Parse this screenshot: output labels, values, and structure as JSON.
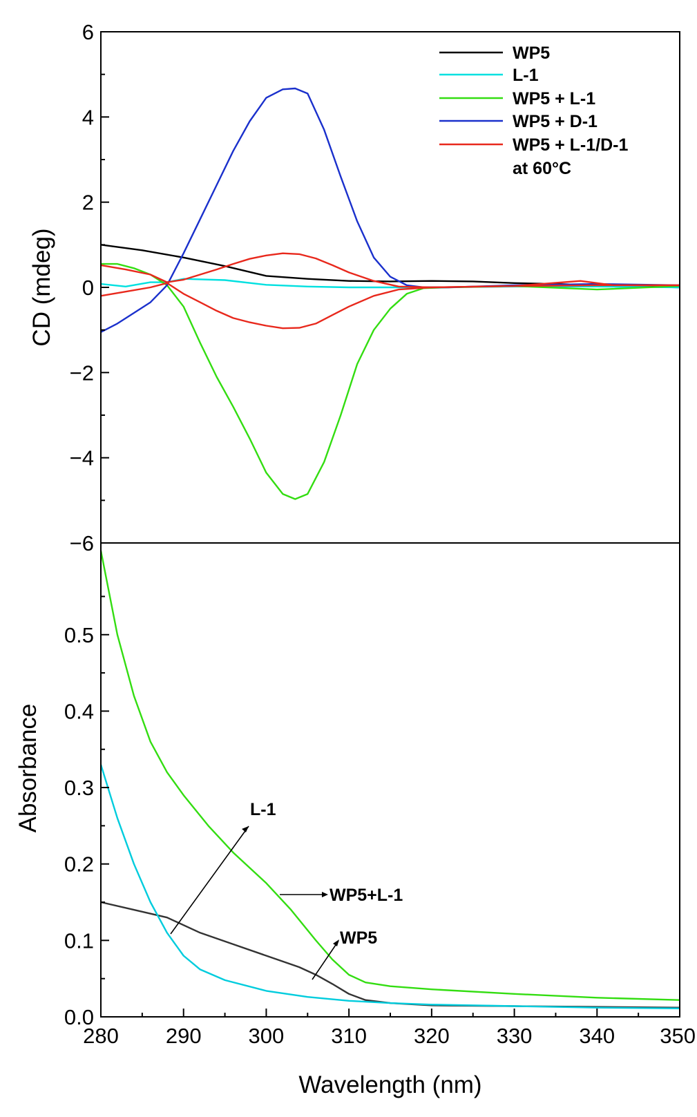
{
  "chart_data": [
    {
      "type": "line",
      "ylabel": "CD (mdeg)",
      "xlim": [
        280,
        350
      ],
      "ylim": [
        -6,
        6
      ],
      "yticks": [
        -6,
        -4,
        -2,
        0,
        2,
        4,
        6
      ],
      "ytick_labels": [
        "−6",
        "−4",
        "−2",
        "0",
        "2",
        "4",
        "6"
      ],
      "legend": {
        "position": "top-right",
        "entries": [
          {
            "label": "WP5",
            "color": "#000000"
          },
          {
            "label": "L-1",
            "color": "#00e0e0"
          },
          {
            "label": "WP5 + L-1",
            "color": "#33dd11"
          },
          {
            "label": "WP5 + D-1",
            "color": "#1a30cc"
          },
          {
            "label": "WP5 + L-1/D-1",
            "label_line2": "at 60°C",
            "color": "#e8281c"
          }
        ]
      },
      "series": [
        {
          "name": "WP5",
          "color": "#000000",
          "x": [
            280,
            285,
            290,
            295,
            300,
            305,
            310,
            315,
            320,
            325,
            330,
            335,
            340,
            345,
            350
          ],
          "y": [
            1.0,
            0.87,
            0.7,
            0.5,
            0.27,
            0.2,
            0.15,
            0.14,
            0.15,
            0.14,
            0.1,
            0.08,
            0.05,
            0.02,
            0.0
          ]
        },
        {
          "name": "L-1",
          "color": "#00e0e0",
          "x": [
            280,
            283,
            286,
            288,
            290,
            295,
            300,
            305,
            310,
            315,
            320,
            330,
            340,
            350
          ],
          "y": [
            0.08,
            0.02,
            0.12,
            0.12,
            0.2,
            0.17,
            0.06,
            0.02,
            0.0,
            0.0,
            0.0,
            0.02,
            0.02,
            0.0
          ]
        },
        {
          "name": "WP5 + L-1",
          "color": "#33dd11",
          "x": [
            280,
            282,
            284,
            286,
            288,
            290,
            292,
            294,
            296,
            298,
            300,
            302,
            303.5,
            305,
            307,
            309,
            311,
            313,
            315,
            317,
            319,
            322,
            330,
            340,
            350
          ],
          "y": [
            0.55,
            0.55,
            0.45,
            0.3,
            0.05,
            -0.45,
            -1.3,
            -2.1,
            -2.8,
            -3.55,
            -4.35,
            -4.85,
            -4.97,
            -4.85,
            -4.1,
            -3.0,
            -1.8,
            -1.0,
            -0.5,
            -0.15,
            -0.02,
            0.0,
            0.03,
            -0.05,
            0.03
          ]
        },
        {
          "name": "WP5 + D-1",
          "color": "#1a30cc",
          "x": [
            280,
            282,
            284,
            286,
            288,
            290,
            292,
            294,
            296,
            298,
            300,
            302,
            303.5,
            305,
            307,
            309,
            311,
            313,
            315,
            317,
            319,
            322,
            330,
            340,
            350
          ],
          "y": [
            -1.05,
            -0.85,
            -0.6,
            -0.35,
            0.05,
            0.8,
            1.6,
            2.4,
            3.2,
            3.9,
            4.45,
            4.65,
            4.67,
            4.55,
            3.7,
            2.6,
            1.55,
            0.7,
            0.25,
            0.05,
            0.0,
            0.0,
            0.05,
            0.08,
            0.05
          ]
        },
        {
          "name": "WP5 + L-1/D-1 at 60°C (positive)",
          "color": "#e8281c",
          "x": [
            280,
            283,
            286,
            288,
            290,
            292,
            294,
            296,
            298,
            300,
            302,
            304,
            306,
            308,
            310,
            313,
            316,
            320,
            330,
            338,
            342,
            350
          ],
          "y": [
            0.52,
            0.42,
            0.3,
            0.12,
            0.18,
            0.3,
            0.42,
            0.55,
            0.67,
            0.75,
            0.8,
            0.78,
            0.68,
            0.52,
            0.35,
            0.15,
            0.02,
            0.0,
            0.03,
            0.15,
            0.05,
            0.05
          ]
        },
        {
          "name": "WP5 + L-1/D-1 at 60°C (negative)",
          "color": "#e8281c",
          "x": [
            280,
            283,
            286,
            288,
            290,
            292,
            294,
            296,
            298,
            300,
            302,
            304,
            306,
            308,
            310,
            313,
            316,
            320,
            330,
            340,
            350
          ],
          "y": [
            -0.2,
            -0.1,
            0.0,
            0.1,
            -0.15,
            -0.35,
            -0.55,
            -0.72,
            -0.82,
            -0.9,
            -0.96,
            -0.95,
            -0.85,
            -0.65,
            -0.45,
            -0.2,
            -0.05,
            0.0,
            0.03,
            0.05,
            0.05
          ]
        }
      ]
    },
    {
      "type": "line",
      "xlabel": "Wavelength (nm)",
      "ylabel": "Absorbance",
      "xlim": [
        280,
        350
      ],
      "ylim": [
        0,
        0.62
      ],
      "xticks": [
        280,
        290,
        300,
        310,
        320,
        330,
        340,
        350
      ],
      "xtick_labels": [
        "280",
        "290",
        "300",
        "310",
        "320",
        "330",
        "340",
        "350"
      ],
      "yticks": [
        0.0,
        0.1,
        0.2,
        0.3,
        0.4,
        0.5
      ],
      "ytick_labels": [
        "0.0",
        "0.1",
        "0.2",
        "0.3",
        "0.4",
        "0.5"
      ],
      "annotations": [
        {
          "text": "L-1",
          "points_to_series": "L-1"
        },
        {
          "text": "WP5+L-1",
          "points_to_series": "WP5+L-1"
        },
        {
          "text": "WP5",
          "points_to_series": "WP5"
        }
      ],
      "series": [
        {
          "name": "WP5",
          "color": "#333333",
          "x": [
            280,
            284,
            288,
            292,
            296,
            300,
            304,
            306,
            308,
            310,
            312,
            315,
            320,
            330,
            340,
            350
          ],
          "y": [
            0.15,
            0.14,
            0.13,
            0.11,
            0.095,
            0.08,
            0.065,
            0.055,
            0.043,
            0.03,
            0.022,
            0.018,
            0.015,
            0.014,
            0.013,
            0.012
          ]
        },
        {
          "name": "L-1",
          "color": "#00ccdd",
          "x": [
            280,
            282,
            284,
            286,
            288,
            290,
            292,
            295,
            300,
            305,
            310,
            315,
            320,
            330,
            340,
            350
          ],
          "y": [
            0.33,
            0.26,
            0.2,
            0.15,
            0.11,
            0.08,
            0.062,
            0.048,
            0.034,
            0.026,
            0.021,
            0.018,
            0.016,
            0.014,
            0.012,
            0.011
          ]
        },
        {
          "name": "WP5+L-1",
          "color": "#33dd11",
          "x": [
            280,
            282,
            284,
            286,
            288,
            290,
            293,
            296,
            300,
            303,
            306,
            308,
            310,
            312,
            315,
            320,
            330,
            340,
            350
          ],
          "y": [
            0.61,
            0.5,
            0.42,
            0.36,
            0.32,
            0.29,
            0.25,
            0.215,
            0.175,
            0.14,
            0.1,
            0.075,
            0.055,
            0.045,
            0.04,
            0.036,
            0.03,
            0.025,
            0.022
          ]
        }
      ]
    }
  ]
}
